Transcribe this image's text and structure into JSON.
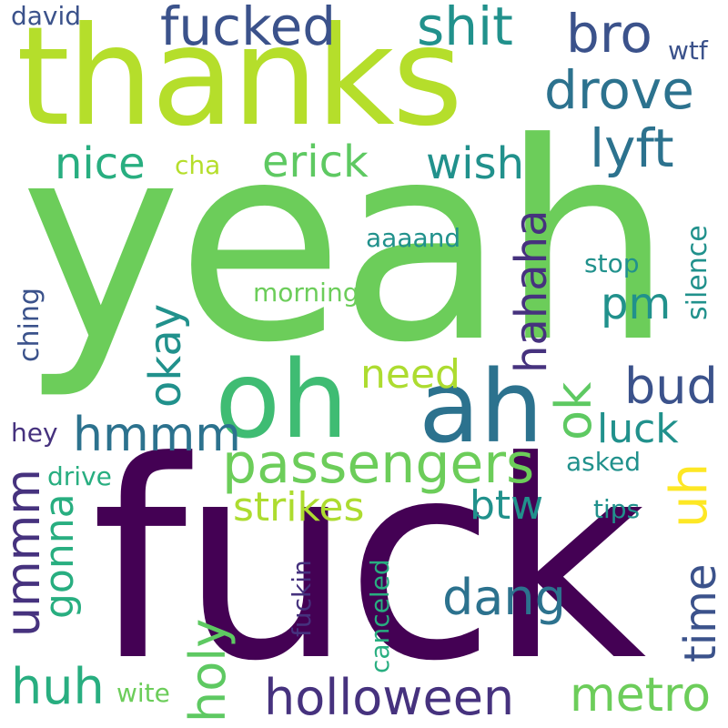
{
  "palette": {
    "dark_purple": "#440154",
    "indigo": "#3b528b",
    "slate_blue": "#46327e",
    "blue": "#2c728e",
    "teal": "#21918c",
    "green_teal": "#28ae80",
    "green": "#5ec962",
    "lime": "#addc30",
    "yellow": "#fde725"
  },
  "words": {
    "yeah": "yeah",
    "fuck": "fuck",
    "thanks": "thanks",
    "oh": "oh",
    "ah": "ah",
    "passengers": "passengers",
    "holloween": "holloween",
    "fucked": "fucked",
    "shit": "shit",
    "bro": "bro",
    "drove": "drove",
    "lyft": "lyft",
    "erick": "erick",
    "nice": "nice",
    "wish": "wish",
    "cha": "cha",
    "david": "david",
    "wtf": "wtf",
    "hahaha": "hahaha",
    "aaaand": "aaaand",
    "stop": "stop",
    "silence": "silence",
    "pm": "pm",
    "morning": "morning",
    "ching": "ching",
    "okay": "okay",
    "need": "need",
    "bud": "bud",
    "ok": "ok",
    "hmmm": "hmmm",
    "luck": "luck",
    "hey": "hey",
    "asked": "asked",
    "uh": "uh",
    "drive": "drive",
    "strikes": "strikes",
    "btw": "btw",
    "tips": "tips",
    "ummm": "ummm",
    "gonna": "gonna",
    "holy": "holy",
    "fuckin": "fuckin",
    "canceled": "canceled",
    "dang": "dang",
    "time": "time",
    "huh": "huh",
    "wite": "wite",
    "metro": "metro"
  }
}
